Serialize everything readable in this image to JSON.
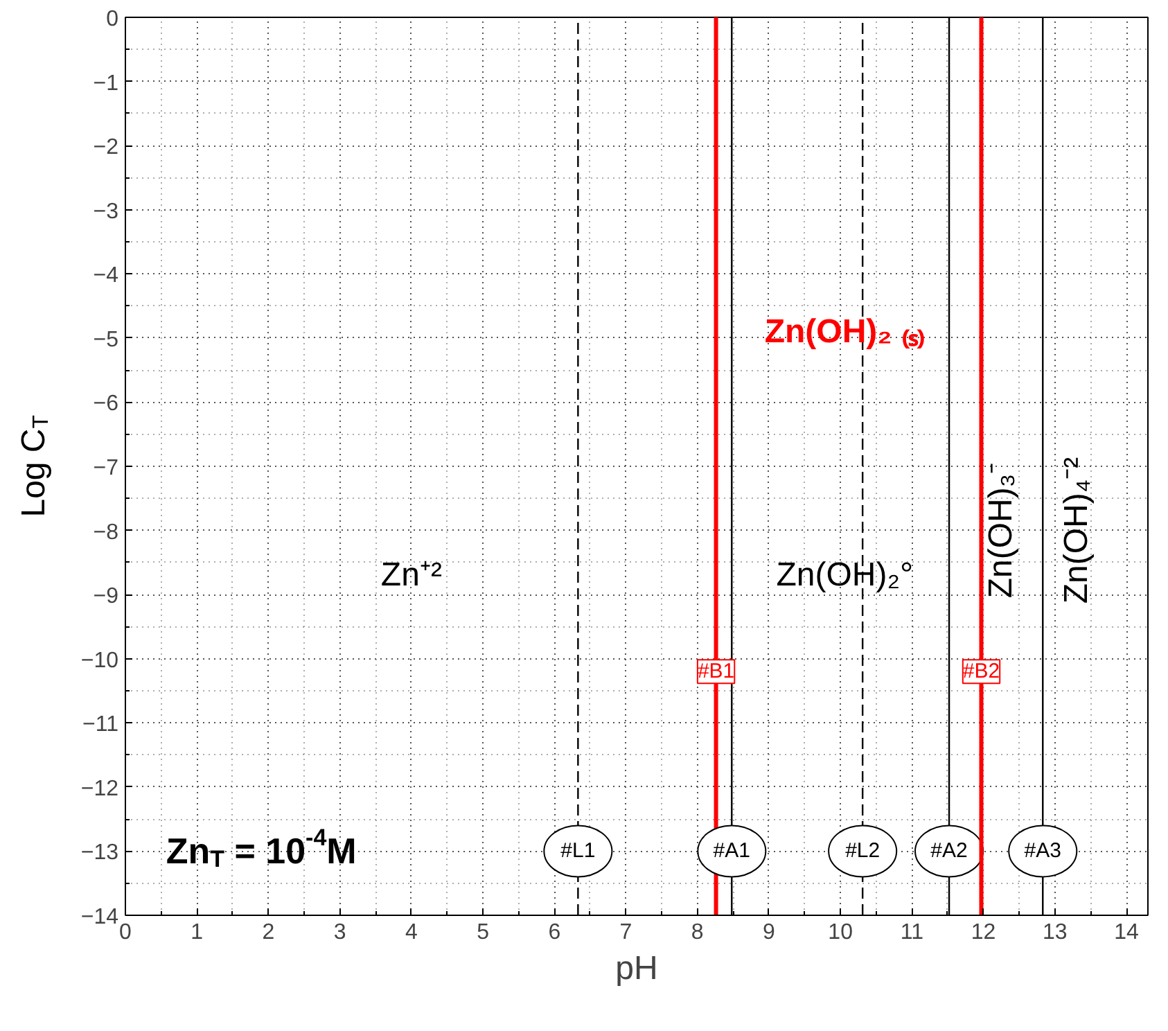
{
  "chart_data": {
    "type": "line",
    "xlabel": "pH",
    "ylabel": "Log C$_{T}$",
    "xlim": [
      0,
      14.3
    ],
    "ylim": [
      -14,
      0
    ],
    "xticks": [
      0,
      1,
      2,
      3,
      4,
      5,
      6,
      7,
      8,
      9,
      10,
      11,
      12,
      13,
      14
    ],
    "yticks": [
      0,
      -1,
      -2,
      -3,
      -4,
      -5,
      -6,
      -7,
      -8,
      -9,
      -10,
      -11,
      -12,
      -13,
      -14
    ],
    "grid": true,
    "marker": "none",
    "series": [
      {
        "name": "#L1",
        "color": "#000000",
        "line_style": "dashed",
        "x": [
          6.33,
          6.33
        ],
        "values": [
          -14,
          0
        ]
      },
      {
        "name": "#B1",
        "color": "#ff0000",
        "line_style": "solid",
        "x": [
          8.26,
          8.26
        ],
        "values": [
          -14,
          0
        ]
      },
      {
        "name": "#A1",
        "color": "#000000",
        "line_style": "solid",
        "x": [
          8.48,
          8.48
        ],
        "values": [
          -14,
          0
        ]
      },
      {
        "name": "#L2",
        "color": "#000000",
        "line_style": "dashed",
        "x": [
          10.31,
          10.31
        ],
        "values": [
          -14,
          0
        ]
      },
      {
        "name": "#A2",
        "color": "#000000",
        "line_style": "solid",
        "x": [
          11.52,
          11.52
        ],
        "values": [
          -14,
          0
        ]
      },
      {
        "name": "#B2",
        "color": "#ff0000",
        "line_style": "solid",
        "x": [
          11.97,
          11.97
        ],
        "values": [
          -14,
          0
        ]
      },
      {
        "name": "#A3",
        "color": "#000000",
        "line_style": "solid",
        "x": [
          12.83,
          12.83
        ],
        "values": [
          -14,
          0
        ]
      }
    ],
    "annotations": [
      "Zn(OH)₂ ₍ₛ₎",
      "Zn⁺²",
      "Zn(OH)₂°",
      "Zn(OH)₃⁻",
      "Zn(OH)₄⁻²",
      "Zn$_{T}$ = 10$^{-4}$M"
    ]
  }
}
